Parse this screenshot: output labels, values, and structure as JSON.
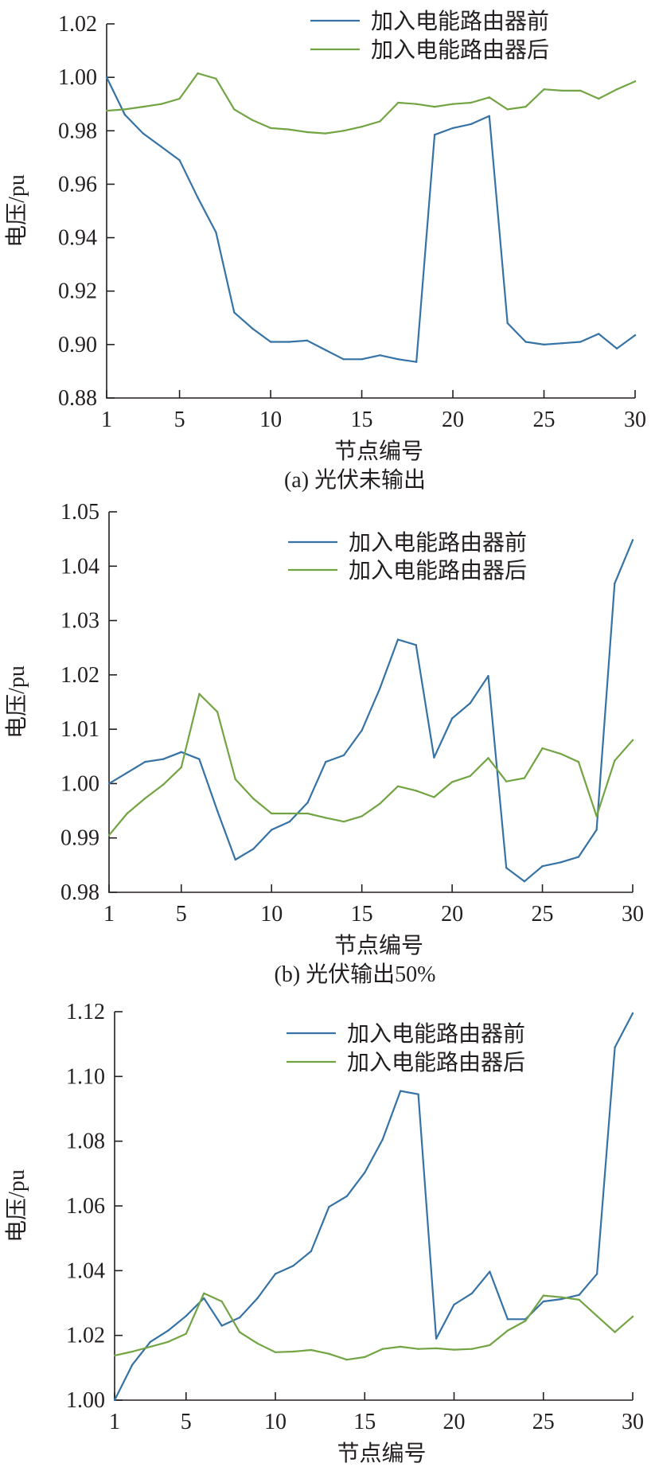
{
  "chart_data": [
    {
      "type": "line",
      "caption": "(a) 光伏未输出",
      "xlabel": "节点编号",
      "ylabel": "电压/pu",
      "xlim": [
        1,
        30
      ],
      "ylim": [
        0.88,
        1.02
      ],
      "xticks": [
        1,
        5,
        10,
        15,
        20,
        25,
        30
      ],
      "yticks": [
        "0.88",
        "0.90",
        "0.92",
        "0.94",
        "0.96",
        "0.98",
        "1.00",
        "1.02"
      ],
      "legend_position": "top-right",
      "x": [
        1,
        2,
        3,
        4,
        5,
        6,
        7,
        8,
        9,
        10,
        11,
        12,
        13,
        14,
        15,
        16,
        17,
        18,
        19,
        20,
        21,
        22,
        23,
        24,
        25,
        26,
        27,
        28,
        29,
        30
      ],
      "series": [
        {
          "name": "加入电能路由器前",
          "color": "#3572a5",
          "values": [
            1.0,
            0.986,
            0.979,
            0.974,
            0.969,
            0.955,
            0.942,
            0.912,
            0.906,
            0.901,
            0.901,
            0.9015,
            0.898,
            0.8945,
            0.8945,
            0.896,
            0.8945,
            0.8935,
            0.9785,
            0.981,
            0.9825,
            0.9855,
            0.908,
            0.901,
            0.9,
            0.9005,
            0.901,
            0.904,
            0.8985,
            0.9035
          ]
        },
        {
          "name": "加入电能路由器后",
          "color": "#72a443",
          "values": [
            0.9875,
            0.988,
            0.989,
            0.99,
            0.992,
            1.0015,
            0.9995,
            0.988,
            0.984,
            0.981,
            0.9805,
            0.9795,
            0.979,
            0.98,
            0.9815,
            0.9835,
            0.9905,
            0.99,
            0.989,
            0.99,
            0.9905,
            0.9925,
            0.988,
            0.989,
            0.9955,
            0.995,
            0.995,
            0.992,
            0.9955,
            0.9985
          ]
        }
      ]
    },
    {
      "type": "line",
      "caption": "(b) 光伏输出50%",
      "xlabel": "节点编号",
      "ylabel": "电压/pu",
      "xlim": [
        1,
        30
      ],
      "ylim": [
        0.98,
        1.05
      ],
      "xticks": [
        1,
        5,
        10,
        15,
        20,
        25,
        30
      ],
      "yticks": [
        "0.98",
        "0.99",
        "1.00",
        "1.01",
        "1.02",
        "1.03",
        "1.04",
        "1.05"
      ],
      "legend_position": "top-right",
      "x": [
        1,
        2,
        3,
        4,
        5,
        6,
        7,
        8,
        9,
        10,
        11,
        12,
        13,
        14,
        15,
        16,
        17,
        18,
        19,
        20,
        21,
        22,
        23,
        24,
        25,
        26,
        27,
        28,
        29,
        30
      ],
      "series": [
        {
          "name": "加入电能路由器前",
          "color": "#3572a5",
          "values": [
            1.0,
            1.002,
            1.004,
            1.0045,
            1.0058,
            1.0045,
            0.995,
            0.986,
            0.988,
            0.9915,
            0.993,
            0.9965,
            1.004,
            1.0052,
            1.0098,
            1.0175,
            1.0265,
            1.0255,
            1.0048,
            1.012,
            1.0148,
            1.0198,
            0.9845,
            0.982,
            0.9848,
            0.9855,
            0.9865,
            0.9915,
            1.0368,
            1.0448
          ]
        },
        {
          "name": "加入电能路由器后",
          "color": "#72a443",
          "values": [
            0.9905,
            0.9945,
            0.9973,
            0.9998,
            1.003,
            1.0165,
            1.0132,
            1.0008,
            0.9972,
            0.9945,
            0.9945,
            0.9945,
            0.9937,
            0.993,
            0.994,
            0.9963,
            0.9995,
            0.9987,
            0.9975,
            1.0003,
            1.0014,
            1.0047,
            1.0004,
            1.001,
            1.0065,
            1.0055,
            1.004,
            0.994,
            1.0042,
            1.008
          ]
        }
      ]
    },
    {
      "type": "line",
      "caption": "(c) 光伏输出100%",
      "xlabel": "节点编号",
      "ylabel": "电压/pu",
      "xlim": [
        1,
        30
      ],
      "ylim": [
        1.0,
        1.12
      ],
      "xticks": [
        1,
        5,
        10,
        15,
        20,
        25,
        30
      ],
      "yticks": [
        "1.00",
        "1.02",
        "1.04",
        "1.06",
        "1.08",
        "1.10",
        "1.12"
      ],
      "legend_position": "top-right",
      "x": [
        1,
        2,
        3,
        4,
        5,
        6,
        7,
        8,
        9,
        10,
        11,
        12,
        13,
        14,
        15,
        16,
        17,
        18,
        19,
        20,
        21,
        22,
        23,
        24,
        25,
        26,
        27,
        28,
        29,
        30
      ],
      "series": [
        {
          "name": "加入电能路由器前",
          "color": "#3572a5",
          "values": [
            1.0,
            1.011,
            1.018,
            1.0215,
            1.026,
            1.0315,
            1.023,
            1.0255,
            1.0315,
            1.039,
            1.0415,
            1.046,
            1.0597,
            1.063,
            1.0703,
            1.0805,
            1.0955,
            1.0945,
            1.019,
            1.0295,
            1.033,
            1.0397,
            1.025,
            1.025,
            1.0305,
            1.0312,
            1.0325,
            1.039,
            1.109,
            1.1195
          ]
        },
        {
          "name": "加入电能路由器后",
          "color": "#72a443",
          "values": [
            1.0138,
            1.015,
            1.0165,
            1.018,
            1.0205,
            1.033,
            1.0305,
            1.021,
            1.0175,
            1.0148,
            1.015,
            1.0155,
            1.0143,
            1.0125,
            1.0133,
            1.0158,
            1.0165,
            1.0158,
            1.016,
            1.0156,
            1.0158,
            1.017,
            1.0215,
            1.0245,
            1.0323,
            1.0318,
            1.031,
            1.026,
            1.021,
            1.0258
          ]
        }
      ]
    }
  ]
}
